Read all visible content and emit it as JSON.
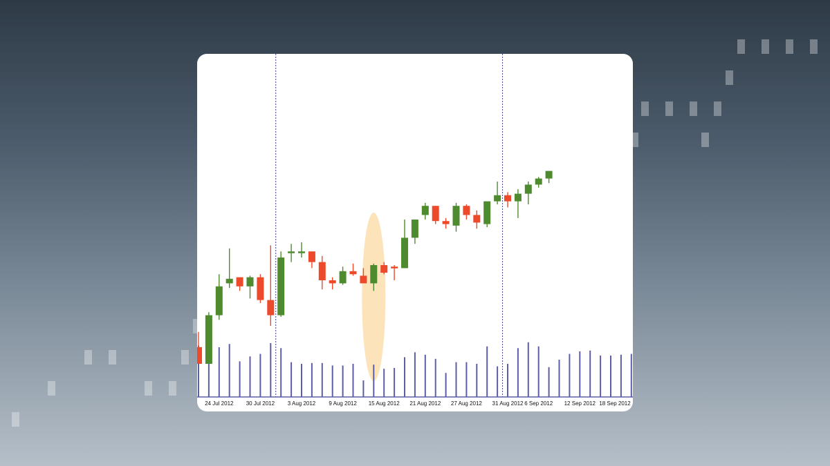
{
  "colors": {
    "bullish": "#4e8a2e",
    "bearish": "#ec4a2b",
    "volume": "#5b5ea6",
    "divider": "#3b3f8a",
    "highlight": "#fde0b3"
  },
  "chart_data": {
    "type": "candlestick",
    "title": "",
    "xlabel": "",
    "ylabel": "",
    "grid": false,
    "x_tick_labels": [
      {
        "date": "24 Jul 2012",
        "label": "24 Jul 2012"
      },
      {
        "date": "30 Jul 2012",
        "label": "30 Jul 2012"
      },
      {
        "date": "3 Aug 2012",
        "label": "3 Aug 2012"
      },
      {
        "date": "9 Aug 2012",
        "label": "9 Aug 2012"
      },
      {
        "date": "15 Aug 2012",
        "label": "15 Aug 2012"
      },
      {
        "date": "21 Aug 2012",
        "label": "21 Aug 2012"
      },
      {
        "date": "27 Aug 2012",
        "label": "27 Aug 2012"
      },
      {
        "date": "31 Aug 2012",
        "label": "31 Aug 2012"
      },
      {
        "date": "6 Sep 2012",
        "label": "6 Sep 2012"
      },
      {
        "date": "12 Sep 2012",
        "label": "12 Sep 2012"
      },
      {
        "date": "18 Sep 2012",
        "label": "18 Sep 2012"
      }
    ],
    "price_range": [
      0,
      100
    ],
    "volume_range": [
      0,
      100
    ],
    "candles": [
      {
        "date": "20 Jul 2012",
        "open": 16,
        "high": 26,
        "low": 5,
        "close": 5,
        "volume": 62
      },
      {
        "date": "23 Jul 2012",
        "open": 5,
        "high": 39,
        "low": 5,
        "close": 37,
        "volume": 59
      },
      {
        "date": "24 Jul 2012",
        "open": 37,
        "high": 64,
        "low": 34,
        "close": 56,
        "volume": 60
      },
      {
        "date": "25 Jul 2012",
        "open": 58,
        "high": 81,
        "low": 55,
        "close": 61,
        "volume": 64
      },
      {
        "date": "26 Jul 2012",
        "open": 62,
        "high": 62,
        "low": 53,
        "close": 56,
        "volume": 43
      },
      {
        "date": "27 Jul 2012",
        "open": 56,
        "high": 63,
        "low": 48,
        "close": 62,
        "volume": 49
      },
      {
        "date": "30 Jul 2012",
        "open": 62,
        "high": 64,
        "low": 45,
        "close": 47,
        "volume": 52
      },
      {
        "date": "31 Jul 2012",
        "open": 47,
        "high": 83,
        "low": 30,
        "close": 37,
        "volume": 65
      },
      {
        "date": "1 Aug 2012",
        "open": 37,
        "high": 79,
        "low": 36,
        "close": 75,
        "volume": 59
      },
      {
        "date": "2 Aug 2012",
        "open": 78,
        "high": 84,
        "low": 72,
        "close": 79,
        "volume": 42
      },
      {
        "date": "3 Aug 2012",
        "open": 79,
        "high": 85,
        "low": 75,
        "close": 79,
        "volume": 40
      },
      {
        "date": "6 Aug 2012",
        "open": 79,
        "high": 79,
        "low": 68,
        "close": 72,
        "volume": 41
      },
      {
        "date": "7 Aug 2012",
        "open": 72,
        "high": 76,
        "low": 54,
        "close": 60,
        "volume": 41
      },
      {
        "date": "8 Aug 2012",
        "open": 60,
        "high": 62,
        "low": 54,
        "close": 58,
        "volume": 38
      },
      {
        "date": "9 Aug 2012",
        "open": 58,
        "high": 69,
        "low": 57,
        "close": 66,
        "volume": 38
      },
      {
        "date": "10 Aug 2012",
        "open": 66,
        "high": 71,
        "low": 63,
        "close": 64,
        "volume": 40
      },
      {
        "date": "13 Aug 2012",
        "open": 63,
        "high": 68,
        "low": 59,
        "close": 58,
        "volume": 20
      },
      {
        "date": "14 Aug 2012",
        "open": 58,
        "high": 71,
        "low": 53,
        "close": 70,
        "volume": 39
      },
      {
        "date": "15 Aug 2012",
        "open": 70,
        "high": 72,
        "low": 64,
        "close": 65,
        "volume": 34
      },
      {
        "date": "16 Aug 2012",
        "open": 69,
        "high": 70,
        "low": 60,
        "close": 68,
        "volume": 35
      },
      {
        "date": "17 Aug 2012",
        "open": 68,
        "high": 100,
        "low": 68,
        "close": 88,
        "volume": 48
      },
      {
        "date": "20 Aug 2012",
        "open": 88,
        "high": 99,
        "low": 84,
        "close": 100,
        "volume": 54
      },
      {
        "date": "21 Aug 2012",
        "open": 103,
        "high": 111,
        "low": 100,
        "close": 109,
        "volume": 51
      },
      {
        "date": "22 Aug 2012",
        "open": 109,
        "high": 109,
        "low": 97,
        "close": 99,
        "volume": 46
      },
      {
        "date": "23 Aug 2012",
        "open": 99,
        "high": 101,
        "low": 94,
        "close": 97,
        "volume": 29
      },
      {
        "date": "24 Aug 2012",
        "open": 96,
        "high": 111,
        "low": 92,
        "close": 109,
        "volume": 42
      },
      {
        "date": "27 Aug 2012",
        "open": 109,
        "high": 110,
        "low": 100,
        "close": 103,
        "volume": 42
      },
      {
        "date": "28 Aug 2012",
        "open": 103,
        "high": 106,
        "low": 94,
        "close": 98,
        "volume": 40
      },
      {
        "date": "29 Aug 2012",
        "open": 97,
        "high": 111,
        "low": 95,
        "close": 112,
        "volume": 61
      },
      {
        "date": "30 Aug 2012",
        "open": 112,
        "high": 125,
        "low": 110,
        "close": 116,
        "volume": 37
      },
      {
        "date": "31 Aug 2012",
        "open": 116,
        "high": 118,
        "low": 108,
        "close": 112,
        "volume": 40
      },
      {
        "date": "4 Sep 2012",
        "open": 112,
        "high": 120,
        "low": 101,
        "close": 117,
        "volume": 59
      },
      {
        "date": "5 Sep 2012",
        "open": 117,
        "high": 125,
        "low": 110,
        "close": 123,
        "volume": 66
      },
      {
        "date": "6 Sep 2012",
        "open": 123,
        "high": 128,
        "low": 121,
        "close": 127,
        "volume": 61
      },
      {
        "date": "7 Sep 2012",
        "open": 127,
        "high": 132,
        "low": 124,
        "close": 132,
        "volume": 36
      },
      {
        "date": "10 Sep 2012",
        "volume": 45
      },
      {
        "date": "11 Sep 2012",
        "volume": 52
      },
      {
        "date": "12 Sep 2012",
        "volume": 55
      },
      {
        "date": "13 Sep 2012",
        "volume": 56
      },
      {
        "date": "14 Sep 2012",
        "volume": 50
      },
      {
        "date": "17 Sep 2012",
        "volume": 50
      },
      {
        "date": "18 Sep 2012",
        "volume": 51
      },
      {
        "date": "19 Sep 2012",
        "volume": 52
      },
      {
        "date": "20 Sep 2012",
        "volume": 55
      }
    ],
    "month_dividers": [
      "31 Jul 2012",
      "30 Aug 2012"
    ],
    "highlight": {
      "date": "14 Aug 2012",
      "note": ""
    }
  }
}
